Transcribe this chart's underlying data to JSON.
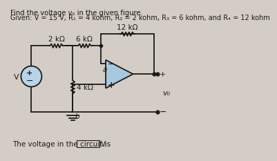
{
  "title_line1": "Find the voltage v₀ in the given figure.",
  "title_line2": "Given: V = 15 V, R₁ = 4 kohm, R₂ = 2 kohm, R₃ = 6 kohm, and R₄ = 12 kohm",
  "bg_color": "#d4cdc5",
  "text_color": "#1a1a1a",
  "r1_label": "2 kΩ",
  "r2_label": "6 kΩ",
  "r3_label": "4 kΩ",
  "r4_label": "12 kΩ",
  "node_a": "a",
  "node_b": "b",
  "v_label": "V",
  "vo_label": "v₀",
  "oa_fill": "#a8c8e0",
  "footer": "The voltage in the circuit is",
  "footer_v": "V."
}
